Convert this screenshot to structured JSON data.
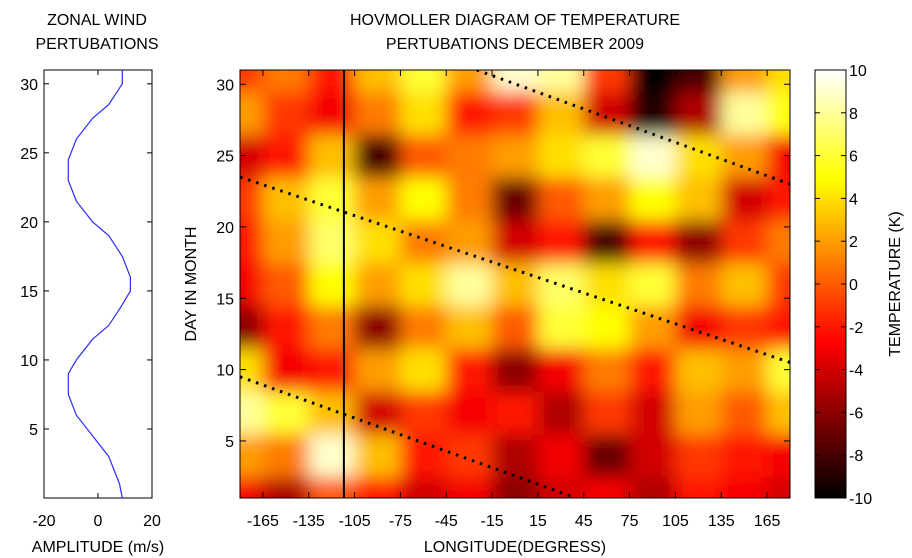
{
  "chart_data": [
    {
      "type": "line",
      "title": [
        "ZONAL WIND",
        "PERTUBATIONS"
      ],
      "xlabel": "AMPLITUDE (m/s)",
      "ylabel": "",
      "xlim": [
        -20,
        20
      ],
      "ylim": [
        0,
        31
      ],
      "xticks": [
        -20,
        0,
        20
      ],
      "yticks": [
        5,
        10,
        15,
        20,
        25,
        30
      ],
      "line_color": "#2b2bff",
      "series": [
        {
          "x": [
            9,
            8,
            4,
            -2,
            -8,
            -11,
            -11,
            -8,
            -2,
            4,
            9,
            12,
            12,
            9,
            4,
            -2,
            -8,
            -11,
            -11,
            -8,
            -2,
            4,
            9,
            9
          ],
          "y": [
            0,
            1,
            3,
            4.5,
            6,
            7.5,
            9,
            10,
            11.5,
            12.5,
            14,
            15,
            16,
            17.5,
            19,
            20,
            21.5,
            23,
            24.5,
            26,
            27.5,
            28.5,
            30,
            31
          ]
        }
      ]
    },
    {
      "type": "heatmap",
      "title": [
        "HOVMOLLER DIAGRAM OF TEMPERATURE",
        "PERTUBATIONS DECEMBER 2009"
      ],
      "xlabel": "LONGITUDE(DEGRESS)",
      "ylabel": "DAY IN MONTH",
      "xlim": [
        -180,
        180
      ],
      "ylim": [
        1,
        31
      ],
      "xticks": [
        -165,
        -135,
        -105,
        -75,
        -45,
        -15,
        15,
        45,
        75,
        105,
        135,
        165
      ],
      "yticks": [
        5,
        10,
        15,
        20,
        25,
        30
      ],
      "colorbar": {
        "label": "TEMPERATURE (K)",
        "ticks": [
          10,
          8,
          6,
          4,
          2,
          0,
          -2,
          -4,
          -6,
          -8,
          -10
        ],
        "range": [
          -10,
          10
        ],
        "colormap": "hot"
      },
      "longitudes": [
        -180,
        -150,
        -120,
        -90,
        -60,
        -30,
        0,
        30,
        60,
        90,
        120,
        150,
        180
      ],
      "days": [
        1,
        4,
        7,
        10,
        13,
        16,
        19,
        22,
        25,
        28,
        31
      ],
      "values": [
        [
          -3,
          -5,
          0,
          -2,
          -4,
          -3,
          -6,
          -4,
          -3,
          -5,
          -2,
          -3,
          -4
        ],
        [
          2,
          1,
          9,
          3,
          -2,
          -1,
          -5,
          -3,
          -7,
          -4,
          -1,
          -2,
          -3
        ],
        [
          8,
          6,
          3,
          -4,
          -1,
          -3,
          -2,
          -5,
          -1,
          -4,
          2,
          0,
          3
        ],
        [
          4,
          -3,
          -2,
          2,
          4,
          -2,
          -6,
          -3,
          1,
          -2,
          3,
          2,
          6
        ],
        [
          -6,
          -2,
          1,
          -6,
          1,
          3,
          0,
          6,
          5,
          2,
          -3,
          -1,
          -2
        ],
        [
          -3,
          0,
          5,
          2,
          4,
          8,
          3,
          7,
          4,
          6,
          1,
          3,
          -1
        ],
        [
          -2,
          2,
          7,
          4,
          1,
          2,
          -4,
          -2,
          -8,
          -2,
          -6,
          -1,
          1
        ],
        [
          -1,
          3,
          6,
          2,
          5,
          1,
          -7,
          0,
          2,
          5,
          3,
          -4,
          -2
        ],
        [
          -4,
          -2,
          3,
          -8,
          0,
          1,
          2,
          4,
          6,
          9,
          4,
          2,
          -3
        ],
        [
          2,
          -1,
          -3,
          1,
          4,
          -2,
          -1,
          3,
          -4,
          -9,
          -5,
          8,
          5
        ],
        [
          -1,
          1,
          -2,
          3,
          6,
          2,
          9,
          8,
          -1,
          -10,
          -8,
          2,
          4
        ]
      ],
      "overlays": {
        "solid_line": {
          "x": [
            -112,
            -112
          ],
          "y": [
            1,
            31
          ]
        },
        "dotted_lines": [
          {
            "x": [
              -180,
              40
            ],
            "y": [
              9.5,
              1
            ]
          },
          {
            "x": [
              -180,
              180
            ],
            "y": [
              23.5,
              10.5
            ]
          },
          {
            "x": [
              -25,
              180
            ],
            "y": [
              31,
              23
            ]
          }
        ]
      }
    }
  ]
}
